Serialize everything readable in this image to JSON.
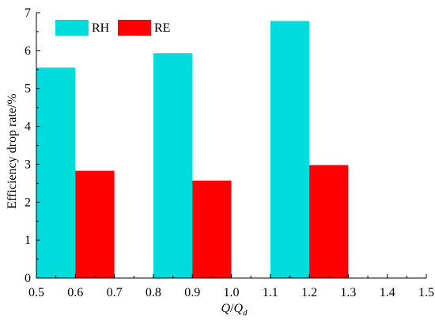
{
  "chart_data": {
    "type": "bar",
    "x_tick_labels": [
      "0.5",
      "0.6",
      "0.7",
      "0.8",
      "0.9",
      "1.0",
      "1.1",
      "1.2",
      "1.3",
      "1.4",
      "1.5"
    ],
    "y_tick_labels": [
      "0",
      "1",
      "2",
      "3",
      "4",
      "5",
      "6",
      "7"
    ],
    "xlim": [
      0.5,
      1.5
    ],
    "ylim": [
      0,
      7
    ],
    "xlabel_q": "Q",
    "xlabel_sep": "/",
    "xlabel_qd": "Q",
    "xlabel_sub": "d",
    "ylabel": "Efficiency drop rate/%",
    "legend_position": "top-left",
    "grid": false,
    "series": [
      {
        "name": "RH",
        "color": "#00dcdc",
        "points": [
          {
            "x_start": 0.5,
            "x_end": 0.6,
            "value": 5.55
          },
          {
            "x_start": 0.8,
            "x_end": 0.9,
            "value": 5.93
          },
          {
            "x_start": 1.1,
            "x_end": 1.2,
            "value": 6.78
          }
        ]
      },
      {
        "name": "RE",
        "color": "#ff0000",
        "points": [
          {
            "x_start": 0.6,
            "x_end": 0.7,
            "value": 2.83
          },
          {
            "x_start": 0.9,
            "x_end": 1.0,
            "value": 2.57
          },
          {
            "x_start": 1.2,
            "x_end": 1.3,
            "value": 2.98
          }
        ]
      }
    ]
  }
}
